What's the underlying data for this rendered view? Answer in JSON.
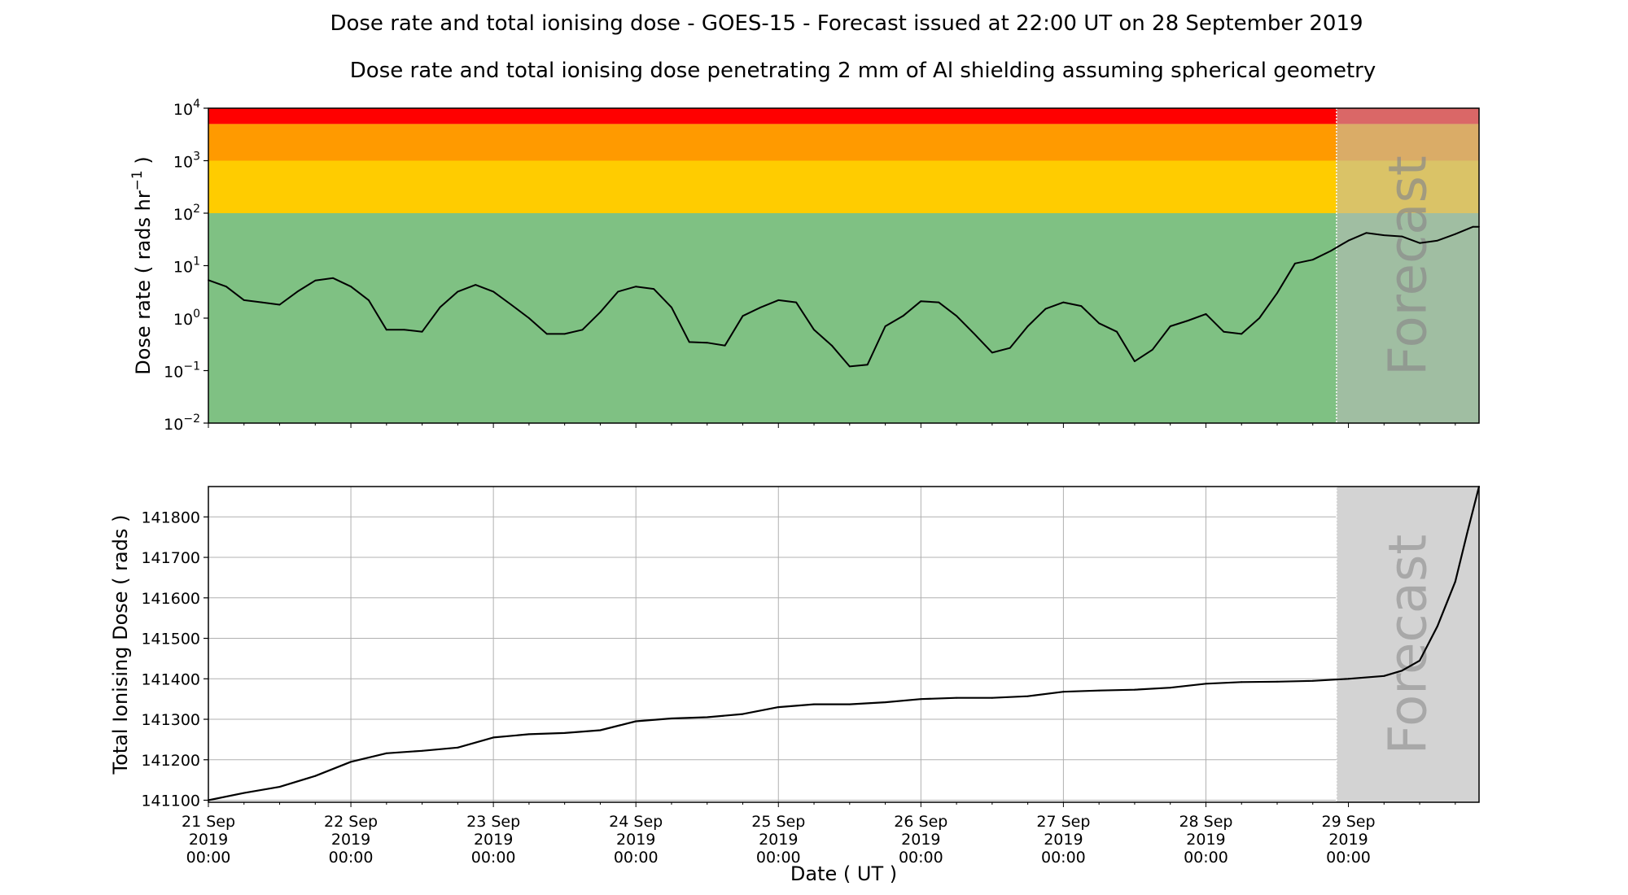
{
  "title": "Dose rate and total ionising dose - GOES-15 - Forecast issued at 22:00 UT on 28 September 2019",
  "subtitle": "Dose rate and total ionising dose penetrating 2 mm of Al shielding assuming spherical geometry",
  "colors": {
    "band_red": "#ff0000",
    "band_orange": "#ff9a00",
    "band_yellow": "#ffcc00",
    "band_green": "#7fc183",
    "forecast_shade": "#bbbbbb",
    "line": "#000000",
    "grid": "#b0b0b0"
  },
  "chart_data": [
    {
      "type": "line",
      "title": "",
      "xlabel": "",
      "ylabel_text": "Dose rate ( rads hr",
      "ylabel_exp": "−1",
      "ylabel_close": " )",
      "yscale": "log",
      "ylim": [
        0.01,
        10000
      ],
      "xlim": [
        "2019-09-21 00:00",
        "2019-09-29 22:00"
      ],
      "yticks": [
        {
          "base": "10",
          "exp": "4"
        },
        {
          "base": "10",
          "exp": "3"
        },
        {
          "base": "10",
          "exp": "2"
        },
        {
          "base": "10",
          "exp": "1"
        },
        {
          "base": "10",
          "exp": "0"
        },
        {
          "base": "10",
          "exp": "−1"
        },
        {
          "base": "10",
          "exp": "−2"
        }
      ],
      "threshold_bands": [
        {
          "from": 5000,
          "to": 10000,
          "color": "red"
        },
        {
          "from": 1000,
          "to": 5000,
          "color": "orange"
        },
        {
          "from": 100,
          "to": 1000,
          "color": "yellow"
        },
        {
          "from": 0.01,
          "to": 100,
          "color": "green"
        }
      ],
      "forecast_start": "2019-09-28 22:00",
      "forecast_label": "Forecast",
      "grid": false,
      "series": [
        {
          "x": [
            "2019-09-21 00:00",
            "2019-09-21 03:00",
            "2019-09-21 06:00",
            "2019-09-21 09:00",
            "2019-09-21 12:00",
            "2019-09-21 15:00",
            "2019-09-21 18:00",
            "2019-09-21 21:00",
            "2019-09-22 00:00",
            "2019-09-22 03:00",
            "2019-09-22 06:00",
            "2019-09-22 09:00",
            "2019-09-22 12:00",
            "2019-09-22 15:00",
            "2019-09-22 18:00",
            "2019-09-22 21:00",
            "2019-09-23 00:00",
            "2019-09-23 03:00",
            "2019-09-23 06:00",
            "2019-09-23 09:00",
            "2019-09-23 12:00",
            "2019-09-23 15:00",
            "2019-09-23 18:00",
            "2019-09-23 21:00",
            "2019-09-24 00:00",
            "2019-09-24 03:00",
            "2019-09-24 06:00",
            "2019-09-24 09:00",
            "2019-09-24 12:00",
            "2019-09-24 15:00",
            "2019-09-24 18:00",
            "2019-09-24 21:00",
            "2019-09-25 00:00",
            "2019-09-25 03:00",
            "2019-09-25 06:00",
            "2019-09-25 09:00",
            "2019-09-25 12:00",
            "2019-09-25 15:00",
            "2019-09-25 18:00",
            "2019-09-25 21:00",
            "2019-09-26 00:00",
            "2019-09-26 03:00",
            "2019-09-26 06:00",
            "2019-09-26 09:00",
            "2019-09-26 12:00",
            "2019-09-26 15:00",
            "2019-09-26 18:00",
            "2019-09-26 21:00",
            "2019-09-27 00:00",
            "2019-09-27 03:00",
            "2019-09-27 06:00",
            "2019-09-27 09:00",
            "2019-09-27 12:00",
            "2019-09-27 15:00",
            "2019-09-27 18:00",
            "2019-09-27 21:00",
            "2019-09-28 00:00",
            "2019-09-28 03:00",
            "2019-09-28 06:00",
            "2019-09-28 09:00",
            "2019-09-28 12:00",
            "2019-09-28 15:00",
            "2019-09-28 18:00",
            "2019-09-28 21:00",
            "2019-09-29 00:00",
            "2019-09-29 03:00",
            "2019-09-29 06:00",
            "2019-09-29 09:00",
            "2019-09-29 12:00",
            "2019-09-29 15:00",
            "2019-09-29 18:00",
            "2019-09-29 21:00",
            "2019-09-29 22:00"
          ],
          "y": [
            5.3,
            4.0,
            2.2,
            2.0,
            1.8,
            3.2,
            5.2,
            5.8,
            4.0,
            2.2,
            0.6,
            0.6,
            0.55,
            1.6,
            3.2,
            4.3,
            3.2,
            1.8,
            1.0,
            0.5,
            0.5,
            0.6,
            1.3,
            3.2,
            4.0,
            3.6,
            1.6,
            0.35,
            0.34,
            0.3,
            1.1,
            1.6,
            2.2,
            2.0,
            0.6,
            0.3,
            0.12,
            0.13,
            0.7,
            1.1,
            2.1,
            2.0,
            1.1,
            0.5,
            0.22,
            0.27,
            0.7,
            1.5,
            2.0,
            1.7,
            0.8,
            0.55,
            0.15,
            0.25,
            0.7,
            0.9,
            1.2,
            0.55,
            0.5,
            1.0,
            3.0,
            11,
            13,
            19,
            30,
            42,
            38,
            36,
            27,
            30,
            40,
            55,
            55
          ]
        }
      ]
    },
    {
      "type": "line",
      "title": "",
      "xlabel": "Date ( UT )",
      "ylabel": "Total Ionising Dose ( rads )",
      "ylim": [
        141095,
        141875
      ],
      "xlim": [
        "2019-09-21 00:00",
        "2019-09-29 22:00"
      ],
      "yticks": [
        "141100",
        "141200",
        "141300",
        "141400",
        "141500",
        "141600",
        "141700",
        "141800"
      ],
      "xticks": [
        {
          "day": "21 Sep",
          "year": "2019",
          "time": "00:00"
        },
        {
          "day": "22 Sep",
          "year": "2019",
          "time": "00:00"
        },
        {
          "day": "23 Sep",
          "year": "2019",
          "time": "00:00"
        },
        {
          "day": "24 Sep",
          "year": "2019",
          "time": "00:00"
        },
        {
          "day": "25 Sep",
          "year": "2019",
          "time": "00:00"
        },
        {
          "day": "26 Sep",
          "year": "2019",
          "time": "00:00"
        },
        {
          "day": "27 Sep",
          "year": "2019",
          "time": "00:00"
        },
        {
          "day": "28 Sep",
          "year": "2019",
          "time": "00:00"
        },
        {
          "day": "29 Sep",
          "year": "2019",
          "time": "00:00"
        }
      ],
      "forecast_start": "2019-09-28 22:00",
      "forecast_label": "Forecast",
      "grid": true,
      "series": [
        {
          "x": [
            "2019-09-21 00:00",
            "2019-09-21 06:00",
            "2019-09-21 12:00",
            "2019-09-21 18:00",
            "2019-09-22 00:00",
            "2019-09-22 06:00",
            "2019-09-22 12:00",
            "2019-09-22 18:00",
            "2019-09-23 00:00",
            "2019-09-23 06:00",
            "2019-09-23 12:00",
            "2019-09-23 18:00",
            "2019-09-24 00:00",
            "2019-09-24 06:00",
            "2019-09-24 12:00",
            "2019-09-24 18:00",
            "2019-09-25 00:00",
            "2019-09-25 06:00",
            "2019-09-25 12:00",
            "2019-09-25 18:00",
            "2019-09-26 00:00",
            "2019-09-26 06:00",
            "2019-09-26 12:00",
            "2019-09-26 18:00",
            "2019-09-27 00:00",
            "2019-09-27 06:00",
            "2019-09-27 12:00",
            "2019-09-27 18:00",
            "2019-09-28 00:00",
            "2019-09-28 06:00",
            "2019-09-28 12:00",
            "2019-09-28 18:00",
            "2019-09-29 00:00",
            "2019-09-29 06:00",
            "2019-09-29 09:00",
            "2019-09-29 12:00",
            "2019-09-29 15:00",
            "2019-09-29 18:00",
            "2019-09-29 20:00",
            "2019-09-29 22:00"
          ],
          "y": [
            141100,
            141118,
            141133,
            141160,
            141195,
            141216,
            141222,
            141230,
            141255,
            141263,
            141266,
            141273,
            141295,
            141302,
            141305,
            141313,
            141330,
            141337,
            141337,
            141342,
            141350,
            141353,
            141353,
            141357,
            141368,
            141371,
            141373,
            141378,
            141388,
            141392,
            141393,
            141395,
            141400,
            141407,
            141420,
            141445,
            141530,
            141640,
            141760,
            141875
          ]
        }
      ]
    }
  ]
}
